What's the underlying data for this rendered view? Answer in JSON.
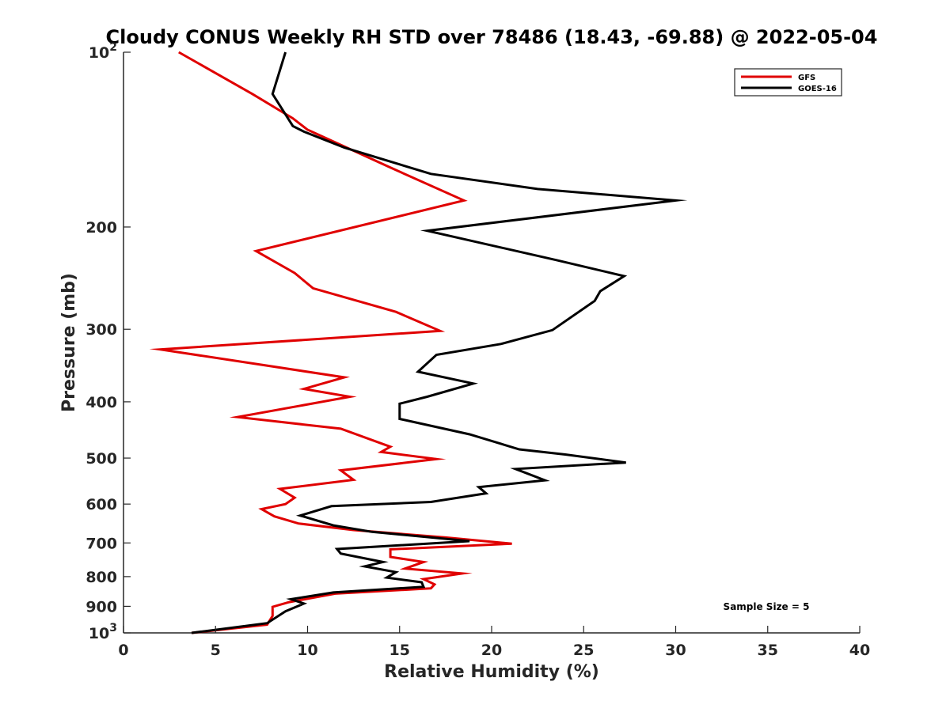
{
  "chart_data": {
    "type": "line",
    "title": "Cloudy CONUS Weekly RH STD over 78486 (18.43, -69.88) @ 2022-05-04",
    "xlabel": "Relative Humidity (%)",
    "ylabel": "Pressure (mb)",
    "xlim": [
      0,
      40
    ],
    "ylim": [
      100,
      1000
    ],
    "y_scale": "log",
    "y_reversed": true,
    "x_ticks": [
      "0",
      "5",
      "10",
      "15",
      "20",
      "25",
      "30",
      "35",
      "40"
    ],
    "y_ticks": [
      {
        "value": 100,
        "base": "10",
        "exp": "2"
      },
      {
        "value": 200,
        "label": "200"
      },
      {
        "value": 300,
        "label": "300"
      },
      {
        "value": 400,
        "label": "400"
      },
      {
        "value": 500,
        "label": "500"
      },
      {
        "value": 600,
        "label": "600"
      },
      {
        "value": 700,
        "label": "700"
      },
      {
        "value": 800,
        "label": "800"
      },
      {
        "value": 900,
        "label": "900"
      },
      {
        "value": 1000,
        "base": "10",
        "exp": "3"
      }
    ],
    "grid": false,
    "legend_position": "top-right",
    "series": [
      {
        "name": "GFS",
        "color": "#e00000",
        "points": [
          [
            3.0,
            100
          ],
          [
            7.0,
            118
          ],
          [
            9.2,
            130
          ],
          [
            10.0,
            136
          ],
          [
            14.5,
            158
          ],
          [
            18.5,
            180
          ],
          [
            7.2,
            220
          ],
          [
            9.3,
            240
          ],
          [
            10.3,
            255
          ],
          [
            14.8,
            280
          ],
          [
            17.2,
            302
          ],
          [
            2.0,
            325
          ],
          [
            12.0,
            363
          ],
          [
            9.8,
            380
          ],
          [
            12.3,
            392
          ],
          [
            6.2,
            425
          ],
          [
            11.8,
            445
          ],
          [
            14.5,
            478
          ],
          [
            14.0,
            488
          ],
          [
            17.0,
            502
          ],
          [
            11.8,
            525
          ],
          [
            12.5,
            545
          ],
          [
            8.5,
            565
          ],
          [
            9.3,
            585
          ],
          [
            8.8,
            600
          ],
          [
            7.5,
            612
          ],
          [
            8.2,
            630
          ],
          [
            9.5,
            648
          ],
          [
            12.5,
            665
          ],
          [
            17.5,
            685
          ],
          [
            21.1,
            702
          ],
          [
            14.5,
            718
          ],
          [
            14.5,
            740
          ],
          [
            16.3,
            755
          ],
          [
            15.3,
            775
          ],
          [
            18.4,
            790
          ],
          [
            16.3,
            808
          ],
          [
            16.9,
            825
          ],
          [
            16.7,
            838
          ],
          [
            11.5,
            856
          ],
          [
            9.0,
            885
          ],
          [
            8.1,
            902
          ],
          [
            8.1,
            935
          ],
          [
            7.8,
            968
          ],
          [
            3.7,
            1000
          ]
        ]
      },
      {
        "name": "GOES-16",
        "color": "#000000",
        "points": [
          [
            8.8,
            100
          ],
          [
            8.1,
            118
          ],
          [
            9.2,
            134
          ],
          [
            9.8,
            137
          ],
          [
            12.0,
            146
          ],
          [
            16.7,
            162
          ],
          [
            22.5,
            172
          ],
          [
            30.0,
            180
          ],
          [
            16.5,
            203
          ],
          [
            23.5,
            228
          ],
          [
            27.2,
            243
          ],
          [
            25.9,
            258
          ],
          [
            25.6,
            268
          ],
          [
            23.3,
            301
          ],
          [
            20.5,
            318
          ],
          [
            17.0,
            332
          ],
          [
            16.0,
            355
          ],
          [
            19.0,
            372
          ],
          [
            16.5,
            392
          ],
          [
            15.0,
            403
          ],
          [
            15.0,
            428
          ],
          [
            18.8,
            455
          ],
          [
            21.5,
            483
          ],
          [
            24.0,
            493
          ],
          [
            27.3,
            509
          ],
          [
            21.3,
            522
          ],
          [
            22.9,
            546
          ],
          [
            19.3,
            561
          ],
          [
            19.7,
            575
          ],
          [
            16.7,
            595
          ],
          [
            11.3,
            605
          ],
          [
            9.6,
            628
          ],
          [
            11.4,
            653
          ],
          [
            13.5,
            670
          ],
          [
            18.8,
            695
          ],
          [
            11.6,
            717
          ],
          [
            11.8,
            730
          ],
          [
            14.1,
            755
          ],
          [
            13.1,
            768
          ],
          [
            14.8,
            786
          ],
          [
            14.3,
            803
          ],
          [
            16.2,
            818
          ],
          [
            16.3,
            833
          ],
          [
            11.4,
            852
          ],
          [
            9.1,
            875
          ],
          [
            9.8,
            890
          ],
          [
            8.8,
            918
          ],
          [
            7.8,
            962
          ],
          [
            3.7,
            1000
          ]
        ]
      }
    ],
    "annotation": "Sample Size = 5"
  }
}
